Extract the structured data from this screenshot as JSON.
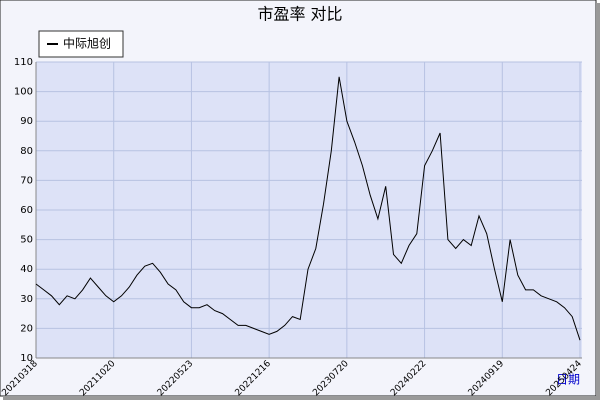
{
  "chart_data": {
    "type": "line",
    "title": "市盈率  对比",
    "x_label": "日期",
    "categories": [
      "20210318",
      null,
      null,
      null,
      null,
      null,
      null,
      null,
      null,
      null,
      "20211020",
      null,
      null,
      null,
      null,
      null,
      null,
      null,
      null,
      null,
      "20220523",
      null,
      null,
      null,
      null,
      null,
      null,
      null,
      null,
      null,
      "20221216",
      null,
      null,
      null,
      null,
      null,
      null,
      null,
      null,
      null,
      "20230720",
      null,
      null,
      null,
      null,
      null,
      null,
      null,
      null,
      null,
      "20240222",
      null,
      null,
      null,
      null,
      null,
      null,
      null,
      null,
      null,
      "20240919",
      null,
      null,
      null,
      null,
      null,
      null,
      null,
      null,
      null,
      "20250424"
    ],
    "series": [
      {
        "name": "中际旭创",
        "color": "#000000",
        "values": [
          35,
          33,
          31,
          28,
          31,
          30,
          33,
          37,
          34,
          31,
          29,
          31,
          34,
          38,
          41,
          42,
          39,
          35,
          33,
          29,
          27,
          27,
          28,
          26,
          25,
          23,
          21,
          21,
          20,
          19,
          18,
          19,
          21,
          24,
          23,
          40,
          47,
          62,
          80,
          105,
          90,
          83,
          75,
          65,
          57,
          68,
          45,
          42,
          48,
          52,
          75,
          80,
          86,
          50,
          47,
          50,
          48,
          58,
          52,
          40,
          29,
          50,
          38,
          33,
          33,
          31,
          30,
          29,
          27,
          24,
          16
        ]
      }
    ],
    "ylim": [
      10,
      110
    ],
    "yticks": [
      10,
      20,
      30,
      40,
      50,
      60,
      70,
      80,
      90,
      100,
      110
    ],
    "grid": true,
    "legend": "top-left"
  }
}
